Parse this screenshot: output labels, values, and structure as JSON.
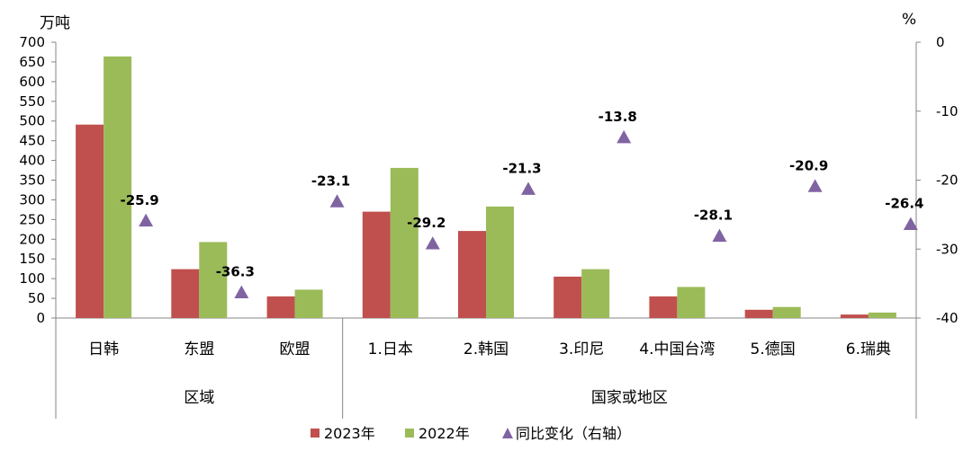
{
  "chart_data": {
    "type": "bar",
    "left_unit": "万吨",
    "right_unit": "%",
    "categories": [
      "日韩",
      "东盟",
      "欧盟",
      "1.日本",
      "2.韩国",
      "3.印尼",
      "4.中国台湾",
      "5.德国",
      "6.瑞典"
    ],
    "groups": [
      {
        "label": "区域",
        "count": 3
      },
      {
        "label": "国家或地区",
        "count": 6
      }
    ],
    "series": [
      {
        "name": "2023年",
        "kind": "bar",
        "axis": "left",
        "color": "#C0504D",
        "values": [
          491,
          124,
          55,
          270,
          221,
          105,
          55,
          21,
          9
        ]
      },
      {
        "name": "2022年",
        "kind": "bar",
        "axis": "left",
        "color": "#9BBB59",
        "values": [
          664,
          193,
          72,
          381,
          283,
          124,
          79,
          28,
          14
        ]
      },
      {
        "name": "同比变化（右轴）",
        "kind": "marker",
        "axis": "right",
        "color": "#8064A2",
        "values": [
          -25.9,
          -36.3,
          -23.1,
          -29.2,
          -21.3,
          -13.8,
          -28.1,
          -20.9,
          -26.4
        ],
        "labels": [
          "-25.9",
          "-36.3",
          "-23.1",
          "-29.2",
          "-21.3",
          "-13.8",
          "-28.1",
          "-20.9",
          "-26.4"
        ]
      }
    ],
    "y_left": {
      "min": 0,
      "max": 700,
      "step": 50,
      "ticks": [
        "0",
        "50",
        "100",
        "150",
        "200",
        "250",
        "300",
        "350",
        "400",
        "450",
        "500",
        "550",
        "600",
        "650",
        "700"
      ]
    },
    "y_right": {
      "min": -40,
      "max": 0,
      "step": 10,
      "ticks": [
        "-40",
        "-30",
        "-20",
        "-10",
        "0"
      ]
    },
    "legend_position": "bottom"
  }
}
